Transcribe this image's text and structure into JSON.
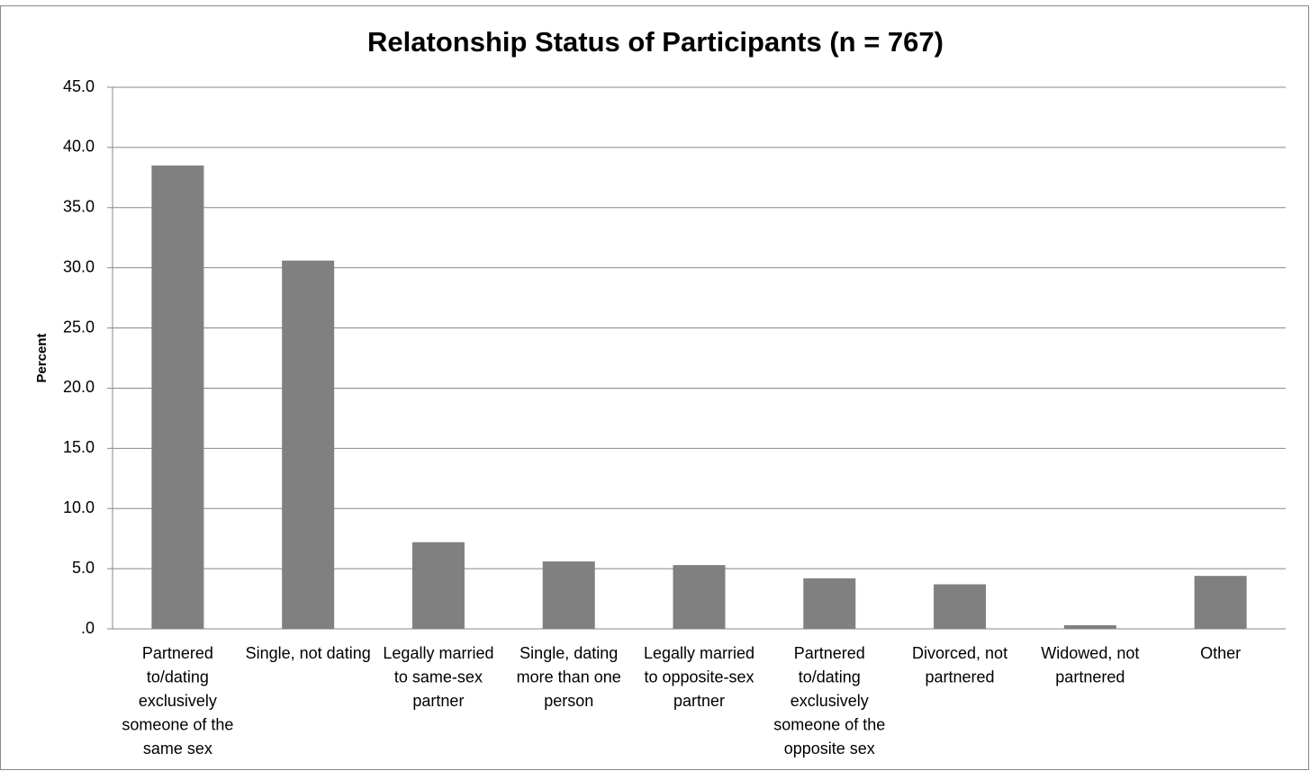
{
  "chart_data": {
    "type": "bar",
    "title": "Relatonship Status of Participants (n = 767)",
    "y_label": "Percent",
    "categories": [
      "Partnered to/dating exclusively someone of the same sex",
      "Single, not dating",
      "Legally married to same-sex partner",
      "Single, dating more than one person",
      "Legally married to opposite-sex partner",
      "Partnered to/dating exclusively someone of the opposite sex",
      "Divorced, not partnered",
      "Widowed, not partnered",
      "Other"
    ],
    "values": [
      38.5,
      30.6,
      7.2,
      5.6,
      5.3,
      4.2,
      3.7,
      0.3,
      4.4
    ],
    "color": "#808080",
    "ylim": [
      0,
      45
    ],
    "yticks": [
      {
        "value": 0,
        "label": ".0"
      },
      {
        "value": 5,
        "label": "5.0"
      },
      {
        "value": 10,
        "label": "10.0"
      },
      {
        "value": 15,
        "label": "15.0"
      },
      {
        "value": 20,
        "label": "20.0"
      },
      {
        "value": 25,
        "label": "25.0"
      },
      {
        "value": 30,
        "label": "30.0"
      },
      {
        "value": 35,
        "label": "35.0"
      },
      {
        "value": 40,
        "label": "40.0"
      },
      {
        "value": 45,
        "label": "45.0"
      }
    ],
    "grid": true
  }
}
